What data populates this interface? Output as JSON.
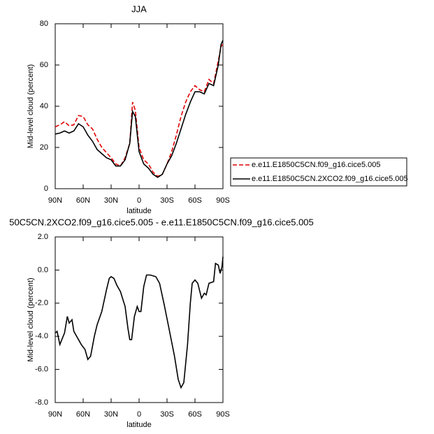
{
  "chart_data": [
    {
      "type": "line",
      "title": "JJA",
      "xlabel": "latitude",
      "ylabel": "Mid-level cloud (percent)",
      "xlim": [
        90,
        -90
      ],
      "ylim": [
        0,
        80
      ],
      "xticks": [
        {
          "value": 90,
          "label": "90N"
        },
        {
          "value": 60,
          "label": "60N"
        },
        {
          "value": 30,
          "label": "30N"
        },
        0,
        {
          "value": -30,
          "label": "30S"
        },
        {
          "value": -60,
          "label": "60S"
        },
        {
          "value": -90,
          "label": "90S"
        }
      ],
      "yticks": [
        0,
        20,
        40,
        60,
        80
      ],
      "legend": "right",
      "x": [
        90,
        85,
        80,
        75,
        70,
        65,
        60,
        55,
        50,
        45,
        40,
        35,
        30,
        25,
        20,
        15,
        10,
        7,
        4,
        0,
        -5,
        -10,
        -15,
        -20,
        -25,
        -30,
        -35,
        -40,
        -45,
        -50,
        -55,
        -60,
        -65,
        -70,
        -75,
        -80,
        -85,
        -88,
        -90
      ],
      "series": [
        {
          "name": "e.e11.E1850C5CN.f09_g16.cice5.005",
          "color": "#e00000",
          "dashed": true,
          "values": [
            30,
            31,
            32.5,
            30.5,
            31,
            35.5,
            35,
            31,
            29,
            24,
            20,
            17.5,
            15,
            12,
            11,
            15,
            22,
            42,
            38,
            20,
            14,
            12,
            8,
            6,
            7,
            12,
            18,
            26,
            35,
            42,
            47,
            50,
            48,
            47,
            53,
            51,
            62,
            69,
            70
          ]
        },
        {
          "name": "e.e11.E1850C5CN.2XCO2.f09_g16.cice5.005",
          "color": "#000000",
          "dashed": false,
          "values": [
            26.5,
            27,
            28,
            27,
            28,
            31.5,
            30,
            26,
            23,
            19,
            17,
            15,
            14,
            11,
            11,
            14,
            22,
            37.5,
            35,
            18,
            12,
            10,
            7,
            5.5,
            7,
            12,
            16,
            22,
            29,
            36,
            42,
            47,
            47,
            46,
            51,
            50,
            60,
            70,
            72
          ]
        }
      ]
    },
    {
      "type": "line",
      "title": "50C5CN.2XCO2.f09_g16.cice5.005 - e.e11.E1850C5CN.f09_g16.cice5.005",
      "xlabel": "latitude",
      "ylabel": "Mid-level cloud (percent)",
      "xlim": [
        90,
        -90
      ],
      "ylim": [
        -8,
        2
      ],
      "xticks": [
        {
          "value": 90,
          "label": "90N"
        },
        {
          "value": 60,
          "label": "60N"
        },
        {
          "value": 30,
          "label": "30N"
        },
        0,
        {
          "value": -30,
          "label": "30S"
        },
        {
          "value": -60,
          "label": "60S"
        },
        {
          "value": -90,
          "label": "90S"
        }
      ],
      "yticks": [
        {
          "value": -8,
          "label": "-8.0"
        },
        {
          "value": -6,
          "label": "-6.0"
        },
        {
          "value": -4,
          "label": "-4.0"
        },
        {
          "value": -2,
          "label": "-2.0"
        },
        {
          "value": 0,
          "label": "0.0"
        },
        {
          "value": 2,
          "label": "2.0"
        }
      ],
      "x": [
        90,
        88,
        85,
        80,
        77,
        75,
        72,
        70,
        65,
        62,
        58,
        55,
        52,
        48,
        45,
        40,
        35,
        32,
        30,
        27,
        24,
        20,
        15,
        12,
        10,
        8,
        5,
        2,
        0,
        -2,
        -5,
        -8,
        -12,
        -18,
        -22,
        -27,
        -32,
        -38,
        -42,
        -45,
        -48,
        -52,
        -55,
        -57,
        -60,
        -63,
        -67,
        -70,
        -72,
        -75,
        -80,
        -82,
        -85,
        -87,
        -89,
        -90
      ],
      "color": "#000000",
      "values": [
        -3.8,
        -3.7,
        -4.5,
        -3.8,
        -2.8,
        -3.2,
        -3,
        -3.7,
        -4.2,
        -4.5,
        -4.8,
        -5.4,
        -5.2,
        -4,
        -3.3,
        -2.5,
        -1.2,
        -0.5,
        -0.4,
        -0.5,
        -0.9,
        -1.3,
        -2.2,
        -3.5,
        -4.2,
        -4.2,
        -2.8,
        -2.2,
        -2.5,
        -2.5,
        -1,
        -0.3,
        -0.3,
        -0.4,
        -0.8,
        -2.1,
        -3.5,
        -5.2,
        -6.6,
        -7.1,
        -6.8,
        -4.5,
        -2,
        -0.8,
        -0.6,
        -0.8,
        -1.7,
        -1.4,
        -1.5,
        -0.8,
        -0.7,
        0.4,
        0.3,
        -0.2,
        0.2,
        0.8
      ]
    }
  ]
}
